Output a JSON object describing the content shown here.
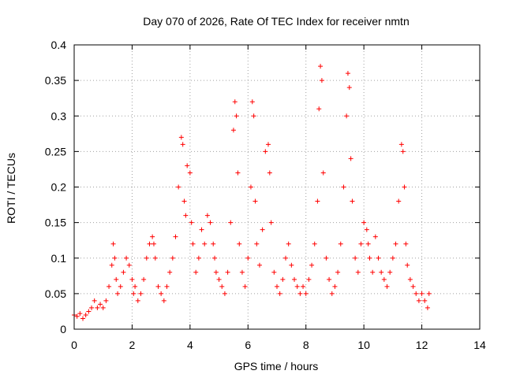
{
  "chart_data": {
    "type": "scatter",
    "title": "Day 070 of 2026, Rate Of TEC Index for receiver nmtn",
    "xlabel": "GPS time / hours",
    "ylabel": "ROTI / TECUs",
    "xlim": [
      0,
      14
    ],
    "ylim": [
      0,
      0.4
    ],
    "xticks": [
      "0",
      "2",
      "4",
      "6",
      "8",
      "10",
      "12",
      "14"
    ],
    "yticks": [
      "0",
      "0.05",
      "0.1",
      "0.15",
      "0.2",
      "0.25",
      "0.3",
      "0.35",
      "0.4"
    ],
    "grid": true,
    "marker": "+",
    "color": "#ff0000",
    "series": [
      {
        "x": [
          0.0,
          0.1,
          0.2,
          0.3,
          0.4,
          0.5,
          0.6,
          0.7,
          0.8,
          0.9,
          1.0,
          1.1,
          1.2,
          1.3,
          1.35,
          1.4,
          1.45,
          1.5,
          1.6,
          1.7,
          1.8,
          1.9,
          2.0,
          2.05,
          2.1,
          2.2,
          2.3,
          2.4,
          2.5,
          2.6,
          2.7,
          2.75,
          2.8,
          2.9,
          3.0,
          3.1,
          3.2,
          3.3,
          3.4,
          3.5,
          3.6,
          3.7,
          3.75,
          3.8,
          3.85,
          3.9,
          4.0,
          4.05,
          4.1,
          4.2,
          4.3,
          4.4,
          4.5,
          4.6,
          4.7,
          4.8,
          4.85,
          4.9,
          5.0,
          5.1,
          5.2,
          5.3,
          5.4,
          5.5,
          5.55,
          5.6,
          5.65,
          5.7,
          5.8,
          5.9,
          6.0,
          6.1,
          6.15,
          6.2,
          6.25,
          6.3,
          6.4,
          6.5,
          6.6,
          6.7,
          6.75,
          6.8,
          6.9,
          7.0,
          7.1,
          7.2,
          7.3,
          7.4,
          7.5,
          7.6,
          7.7,
          7.8,
          7.9,
          8.0,
          8.1,
          8.2,
          8.3,
          8.4,
          8.45,
          8.5,
          8.55,
          8.6,
          8.7,
          8.8,
          8.9,
          9.0,
          9.1,
          9.2,
          9.3,
          9.4,
          9.45,
          9.5,
          9.55,
          9.6,
          9.7,
          9.8,
          9.9,
          10.0,
          10.1,
          10.15,
          10.2,
          10.3,
          10.4,
          10.5,
          10.6,
          10.7,
          10.8,
          10.9,
          11.0,
          11.1,
          11.2,
          11.3,
          11.35,
          11.4,
          11.45,
          11.5,
          11.6,
          11.7,
          11.8,
          11.9,
          12.0,
          12.1,
          12.2,
          12.25
        ],
        "y": [
          0.02,
          0.018,
          0.022,
          0.015,
          0.02,
          0.025,
          0.03,
          0.04,
          0.03,
          0.035,
          0.03,
          0.04,
          0.06,
          0.09,
          0.12,
          0.1,
          0.07,
          0.05,
          0.06,
          0.08,
          0.1,
          0.09,
          0.07,
          0.05,
          0.06,
          0.04,
          0.05,
          0.07,
          0.1,
          0.12,
          0.13,
          0.12,
          0.1,
          0.06,
          0.05,
          0.04,
          0.06,
          0.08,
          0.1,
          0.13,
          0.2,
          0.27,
          0.26,
          0.18,
          0.16,
          0.23,
          0.22,
          0.15,
          0.12,
          0.08,
          0.1,
          0.14,
          0.12,
          0.16,
          0.15,
          0.12,
          0.1,
          0.08,
          0.07,
          0.06,
          0.05,
          0.08,
          0.15,
          0.28,
          0.32,
          0.3,
          0.22,
          0.12,
          0.08,
          0.06,
          0.1,
          0.2,
          0.32,
          0.3,
          0.18,
          0.12,
          0.09,
          0.14,
          0.25,
          0.26,
          0.22,
          0.15,
          0.08,
          0.06,
          0.05,
          0.07,
          0.1,
          0.12,
          0.09,
          0.07,
          0.06,
          0.05,
          0.06,
          0.05,
          0.07,
          0.09,
          0.12,
          0.18,
          0.31,
          0.37,
          0.35,
          0.22,
          0.1,
          0.07,
          0.05,
          0.06,
          0.08,
          0.12,
          0.2,
          0.3,
          0.36,
          0.34,
          0.24,
          0.18,
          0.1,
          0.08,
          0.12,
          0.15,
          0.14,
          0.12,
          0.1,
          0.08,
          0.13,
          0.1,
          0.08,
          0.07,
          0.06,
          0.08,
          0.1,
          0.12,
          0.18,
          0.26,
          0.25,
          0.2,
          0.12,
          0.09,
          0.07,
          0.06,
          0.05,
          0.04,
          0.05,
          0.04,
          0.03,
          0.05
        ]
      }
    ]
  }
}
